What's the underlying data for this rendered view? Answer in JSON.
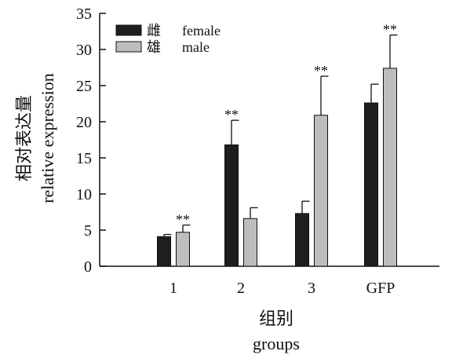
{
  "chart_data": {
    "type": "bar",
    "categories": [
      "1",
      "2",
      "3",
      "GFP"
    ],
    "series": [
      {
        "name": "雌",
        "name_en": "female",
        "color": "#1e1e1e",
        "values": [
          4.1,
          16.8,
          7.3,
          22.6
        ],
        "errors": [
          0.3,
          3.4,
          1.7,
          2.6
        ],
        "significance": [
          "",
          "**",
          "",
          ""
        ]
      },
      {
        "name": "雄",
        "name_en": "male",
        "color": "#bdbdbd",
        "values": [
          4.7,
          6.6,
          20.9,
          27.4
        ],
        "errors": [
          1.0,
          1.5,
          5.4,
          4.6
        ],
        "significance": [
          "**",
          "",
          "**",
          "**"
        ]
      }
    ],
    "ylim": [
      0,
      35
    ],
    "yticks": [
      0,
      5,
      10,
      15,
      20,
      25,
      30,
      35
    ],
    "ylabel_cn": "相对表达量",
    "ylabel_en": "relative expression",
    "xlabel_cn": "组别",
    "xlabel_en": "groups",
    "legend_position": "top-left",
    "grid": false
  }
}
